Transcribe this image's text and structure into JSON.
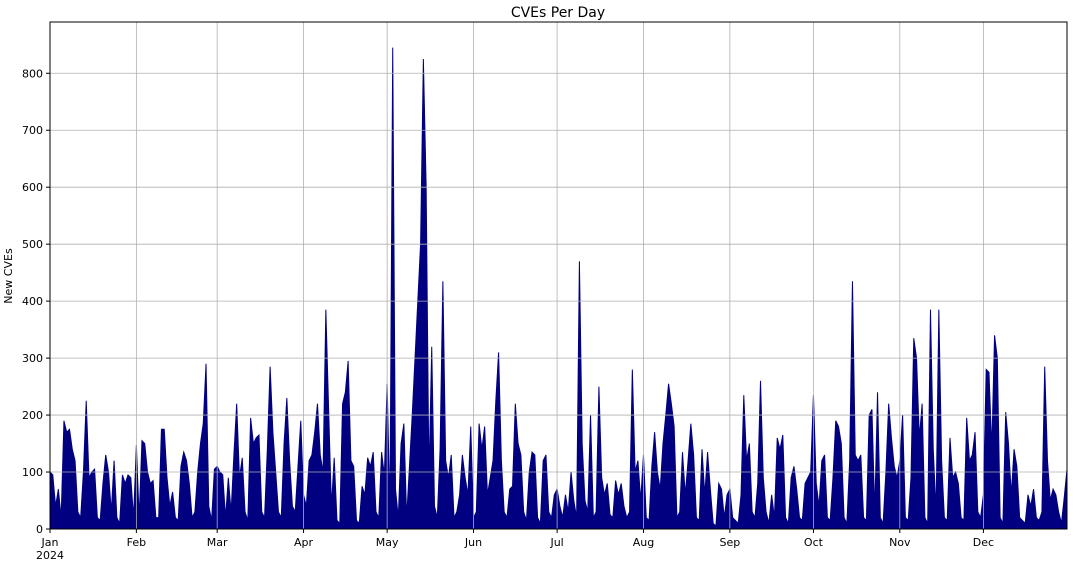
{
  "chart_data": {
    "type": "area",
    "title": "CVEs Per Day",
    "ylabel": "New CVEs",
    "color": "#000080",
    "grid": true,
    "xlim": [
      0,
      365
    ],
    "ylim": [
      0,
      890
    ],
    "yticks": [
      0,
      100,
      200,
      300,
      400,
      500,
      600,
      700,
      800
    ],
    "xticks": [
      {
        "value": 0,
        "label": "Jan\n2024"
      },
      {
        "value": 31,
        "label": "Feb"
      },
      {
        "value": 60,
        "label": "Mar"
      },
      {
        "value": 91,
        "label": "Apr"
      },
      {
        "value": 121,
        "label": "May"
      },
      {
        "value": 152,
        "label": "Jun"
      },
      {
        "value": 182,
        "label": "Jul"
      },
      {
        "value": 213,
        "label": "Aug"
      },
      {
        "value": 244,
        "label": "Sep"
      },
      {
        "value": 274,
        "label": "Oct"
      },
      {
        "value": 305,
        "label": "Nov"
      },
      {
        "value": 335,
        "label": "Dec"
      }
    ],
    "x": [
      0,
      1,
      2,
      3,
      4,
      5,
      6,
      7,
      8,
      9,
      10,
      11,
      12,
      13,
      14,
      15,
      16,
      17,
      18,
      19,
      20,
      21,
      22,
      23,
      24,
      25,
      26,
      27,
      28,
      29,
      30,
      31,
      32,
      33,
      34,
      35,
      36,
      37,
      38,
      39,
      40,
      41,
      42,
      43,
      44,
      45,
      46,
      47,
      48,
      49,
      50,
      51,
      52,
      53,
      54,
      55,
      56,
      57,
      58,
      59,
      60,
      61,
      62,
      63,
      64,
      65,
      66,
      67,
      68,
      69,
      70,
      71,
      72,
      73,
      74,
      75,
      76,
      77,
      78,
      79,
      80,
      81,
      82,
      83,
      84,
      85,
      86,
      87,
      88,
      89,
      90,
      91,
      92,
      93,
      94,
      95,
      96,
      97,
      98,
      99,
      100,
      101,
      102,
      103,
      104,
      105,
      106,
      107,
      108,
      109,
      110,
      111,
      112,
      113,
      114,
      115,
      116,
      117,
      118,
      119,
      120,
      121,
      122,
      123,
      124,
      125,
      126,
      127,
      128,
      129,
      130,
      131,
      132,
      133,
      134,
      135,
      136,
      137,
      138,
      139,
      140,
      141,
      142,
      143,
      144,
      145,
      146,
      147,
      148,
      149,
      150,
      151,
      152,
      153,
      154,
      155,
      156,
      157,
      158,
      159,
      160,
      161,
      162,
      163,
      164,
      165,
      166,
      167,
      168,
      169,
      170,
      171,
      172,
      173,
      174,
      175,
      176,
      177,
      178,
      179,
      180,
      181,
      182,
      183,
      184,
      185,
      186,
      187,
      188,
      189,
      190,
      191,
      192,
      193,
      194,
      195,
      196,
      197,
      198,
      199,
      200,
      201,
      202,
      203,
      204,
      205,
      206,
      207,
      208,
      209,
      210,
      211,
      212,
      213,
      214,
      215,
      216,
      217,
      218,
      219,
      220,
      221,
      222,
      223,
      224,
      225,
      226,
      227,
      228,
      229,
      230,
      231,
      232,
      233,
      234,
      235,
      236,
      237,
      238,
      239,
      240,
      241,
      242,
      243,
      244,
      245,
      246,
      247,
      248,
      249,
      250,
      251,
      252,
      253,
      254,
      255,
      256,
      257,
      258,
      259,
      260,
      261,
      262,
      263,
      264,
      265,
      266,
      267,
      268,
      269,
      270,
      271,
      272,
      273,
      274,
      275,
      276,
      277,
      278,
      279,
      280,
      281,
      282,
      283,
      284,
      285,
      286,
      287,
      288,
      289,
      290,
      291,
      292,
      293,
      294,
      295,
      296,
      297,
      298,
      299,
      300,
      301,
      302,
      303,
      304,
      305,
      306,
      307,
      308,
      309,
      310,
      311,
      312,
      313,
      314,
      315,
      316,
      317,
      318,
      319,
      320,
      321,
      322,
      323,
      324,
      325,
      326,
      327,
      328,
      329,
      330,
      331,
      332,
      333,
      334,
      335,
      336,
      337,
      338,
      339,
      340,
      341,
      342,
      343,
      344,
      345,
      346,
      347,
      348,
      349,
      350,
      351,
      352,
      353,
      354,
      355,
      356,
      357,
      358,
      359,
      360,
      361,
      362,
      363,
      364,
      365
    ],
    "values": [
      100,
      95,
      40,
      70,
      20,
      190,
      170,
      175,
      140,
      120,
      30,
      20,
      100,
      225,
      90,
      100,
      105,
      20,
      15,
      80,
      130,
      100,
      30,
      120,
      20,
      10,
      95,
      80,
      95,
      90,
      20,
      147,
      20,
      155,
      150,
      100,
      80,
      85,
      20,
      20,
      175,
      175,
      90,
      40,
      65,
      20,
      15,
      110,
      135,
      120,
      80,
      20,
      30,
      100,
      150,
      185,
      290,
      40,
      15,
      105,
      110,
      100,
      95,
      20,
      90,
      30,
      130,
      220,
      90,
      125,
      30,
      15,
      195,
      150,
      160,
      165,
      30,
      20,
      140,
      285,
      170,
      100,
      30,
      20,
      150,
      230,
      120,
      40,
      30,
      110,
      190,
      60,
      40,
      120,
      130,
      170,
      220,
      130,
      100,
      385,
      210,
      40,
      125,
      15,
      10,
      220,
      240,
      295,
      120,
      110,
      15,
      10,
      75,
      60,
      125,
      110,
      135,
      30,
      20,
      135,
      95,
      255,
      30,
      845,
      70,
      20,
      150,
      185,
      20,
      110,
      200,
      300,
      400,
      500,
      825,
      600,
      90,
      320,
      40,
      20,
      140,
      435,
      120,
      90,
      130,
      20,
      30,
      60,
      130,
      90,
      60,
      180,
      20,
      30,
      185,
      140,
      180,
      60,
      90,
      120,
      225,
      310,
      120,
      30,
      20,
      70,
      75,
      220,
      150,
      130,
      30,
      15,
      100,
      135,
      130,
      20,
      10,
      120,
      130,
      30,
      20,
      60,
      70,
      40,
      20,
      60,
      30,
      100,
      50,
      20,
      470,
      150,
      50,
      30,
      200,
      20,
      30,
      250,
      90,
      60,
      80,
      25,
      20,
      85,
      60,
      80,
      40,
      20,
      30,
      280,
      100,
      120,
      50,
      130,
      20,
      15,
      110,
      170,
      100,
      70,
      150,
      200,
      255,
      220,
      180,
      20,
      30,
      135,
      60,
      120,
      185,
      130,
      20,
      15,
      140,
      60,
      135,
      70,
      10,
      5,
      80,
      70,
      20,
      60,
      70,
      20,
      15,
      10,
      60,
      235,
      120,
      150,
      30,
      20,
      80,
      260,
      90,
      30,
      10,
      60,
      20,
      160,
      140,
      165,
      20,
      10,
      90,
      110,
      70,
      20,
      15,
      80,
      90,
      100,
      235,
      80,
      40,
      120,
      130,
      20,
      15,
      90,
      190,
      180,
      150,
      20,
      10,
      120,
      435,
      130,
      120,
      130,
      20,
      15,
      200,
      210,
      30,
      240,
      20,
      10,
      100,
      220,
      160,
      110,
      90,
      120,
      200,
      20,
      15,
      90,
      335,
      300,
      160,
      220,
      20,
      10,
      385,
      140,
      30,
      385,
      120,
      20,
      15,
      160,
      90,
      100,
      80,
      20,
      15,
      195,
      120,
      130,
      170,
      30,
      20,
      60,
      280,
      275,
      140,
      340,
      300,
      20,
      10,
      205,
      150,
      60,
      140,
      110,
      20,
      15,
      10,
      60,
      40,
      70,
      20,
      15,
      30,
      285,
      120,
      50,
      70,
      60,
      30,
      10,
      55,
      105
    ]
  }
}
